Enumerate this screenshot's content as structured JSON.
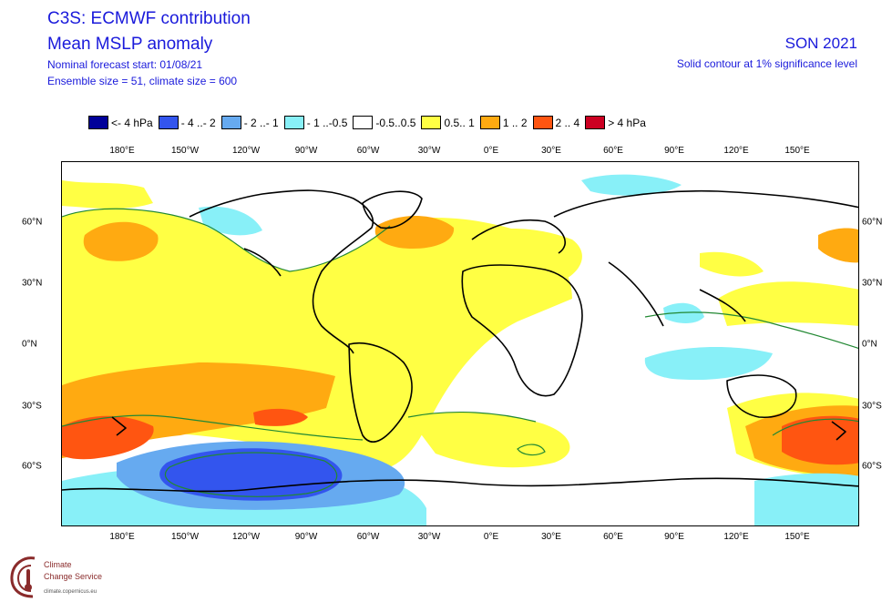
{
  "header": {
    "title_line1": "C3S: ECMWF contribution",
    "title_line2": "Mean MSLP anomaly",
    "forecast_start": "Nominal forecast start: 01/08/21",
    "ensemble": "Ensemble size = 51, climate size = 600",
    "season": "SON 2021",
    "significance": "Solid contour at 1% significance level"
  },
  "legend": [
    {
      "label": "<- 4 hPa",
      "color": "#000099"
    },
    {
      "label": "- 4 ..- 2",
      "color": "#3355ee"
    },
    {
      "label": "- 2 ..- 1",
      "color": "#66aaf0"
    },
    {
      "label": "- 1 ..-0.5",
      "color": "#88f0f8"
    },
    {
      "label": "-0.5..0.5",
      "color": "#ffffff"
    },
    {
      "label": "0.5.. 1",
      "color": "#ffff44"
    },
    {
      "label": "1 .. 2",
      "color": "#ffaa11"
    },
    {
      "label": "2 .. 4",
      "color": "#ff5511"
    },
    {
      "label": "> 4 hPa",
      "color": "#cc0022"
    }
  ],
  "axes": {
    "lon_labels": [
      "180°E",
      "150°W",
      "120°W",
      "90°W",
      "60°W",
      "30°W",
      "0°E",
      "30°E",
      "60°E",
      "90°E",
      "120°E",
      "150°E"
    ],
    "lat_labels_left": [
      "60°N",
      "30°N",
      "0°N",
      "30°S",
      "60°S"
    ],
    "lat_labels_right": [
      "60°N",
      "30°N",
      "0°N",
      "30°S",
      "60°S"
    ]
  },
  "colors": {
    "contour": "#228833",
    "coast": "#000000",
    "border": "#999999"
  },
  "logo": {
    "line1": "Climate",
    "line2": "Change Service",
    "line3": "climate.copernicus.eu"
  }
}
